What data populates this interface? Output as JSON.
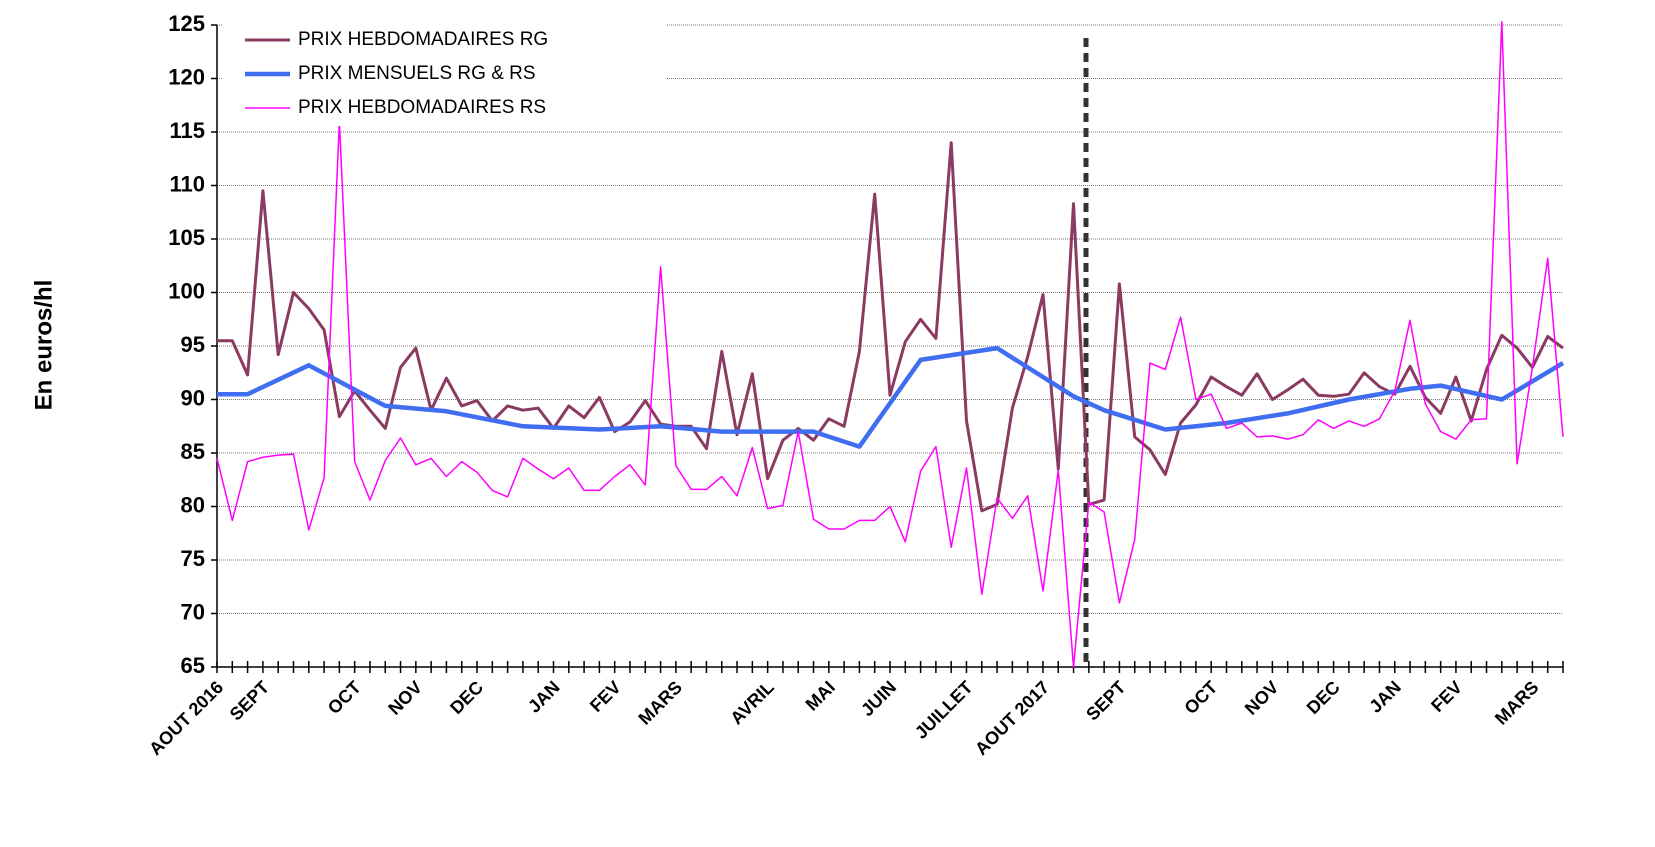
{
  "chart_data": {
    "type": "line",
    "axis_label_y": "En euros/hl",
    "categories": [
      "AOUT 2016",
      null,
      null,
      "SEPT",
      null,
      null,
      null,
      null,
      null,
      "OCT",
      null,
      null,
      null,
      "NOV",
      null,
      null,
      null,
      "DEC",
      null,
      null,
      null,
      null,
      "JAN",
      null,
      null,
      null,
      "FEV",
      null,
      null,
      null,
      "MARS",
      null,
      null,
      null,
      null,
      null,
      "AVRIL",
      null,
      null,
      null,
      "MAI",
      null,
      null,
      null,
      "JUIN",
      null,
      null,
      null,
      null,
      "JUILLET",
      null,
      null,
      null,
      null,
      "AOUT 2017",
      null,
      null,
      null,
      null,
      "SEPT",
      null,
      null,
      null,
      null,
      null,
      "OCT",
      null,
      null,
      null,
      "NOV",
      null,
      null,
      null,
      "DEC",
      null,
      null,
      null,
      "JAN",
      null,
      null,
      null,
      "FEV",
      null,
      null,
      null,
      null,
      "MARS",
      null,
      null
    ],
    "series": [
      {
        "name": "PRIX HEBDOMADAIRES RG",
        "color": "#8b3a62",
        "width": 3,
        "values": [
          95.5,
          95.5,
          92.3,
          109.5,
          94.2,
          100,
          98.5,
          96.5,
          88.4,
          90.8,
          89,
          87.3,
          93,
          94.8,
          89,
          92,
          89.4,
          89.9,
          88,
          89.4,
          89,
          89.2,
          87.3,
          89.4,
          88.3,
          90.2,
          87,
          87.9,
          89.9,
          87.7,
          87.5,
          87.5,
          85.4,
          94.5,
          86.7,
          92.4,
          82.6,
          86.2,
          87.3,
          86.2,
          88.2,
          87.5,
          94.5,
          109.2,
          90.4,
          95.4,
          97.5,
          95.7,
          114,
          88,
          79.6,
          80.2,
          89.2,
          94,
          99.8,
          83.5,
          108.3,
          80.2,
          80.6,
          100.8,
          86.5,
          85.3,
          83,
          87.8,
          89.5,
          92.1,
          91.2,
          90.4,
          92.4,
          90,
          90.9,
          91.9,
          90.4,
          90.3,
          90.5,
          92.5,
          91.2,
          90.5,
          93.1,
          90.2,
          88.7,
          92.1,
          88,
          92.8,
          96,
          94.8,
          93,
          95.9,
          94.8
        ]
      },
      {
        "name": "PRIX MENSUELS RG & RS",
        "color": "#3f6ff0",
        "width": 4.5,
        "values": [
          90.5,
          null,
          90.5,
          null,
          null,
          null,
          93.2,
          null,
          null,
          null,
          null,
          89.4,
          null,
          null,
          null,
          88.9,
          null,
          null,
          null,
          null,
          87.5,
          null,
          null,
          null,
          null,
          87.2,
          null,
          null,
          null,
          87.5,
          null,
          null,
          null,
          87,
          null,
          null,
          null,
          null,
          null,
          87,
          null,
          null,
          85.6,
          null,
          null,
          null,
          93.7,
          null,
          null,
          null,
          null,
          94.8,
          null,
          null,
          null,
          null,
          90.3,
          null,
          89,
          null,
          null,
          null,
          87.2,
          null,
          null,
          null,
          87.8,
          null,
          null,
          null,
          88.7,
          null,
          null,
          null,
          90,
          null,
          null,
          null,
          91,
          null,
          91.3,
          null,
          null,
          null,
          90,
          null,
          null,
          null,
          93.4
        ]
      },
      {
        "name": "PRIX HEBDOMADAIRES RS",
        "color": "#ff00ff",
        "width": 1.5,
        "values": [
          84.5,
          78.7,
          84.2,
          84.6,
          84.8,
          84.9,
          77.8,
          82.7,
          116,
          84.2,
          80.6,
          84.3,
          86.4,
          83.9,
          84.5,
          82.8,
          84.2,
          83.2,
          81.5,
          80.9,
          84.5,
          83.5,
          82.6,
          83.6,
          81.5,
          81.5,
          82.8,
          83.9,
          82,
          102.4,
          83.8,
          81.6,
          81.6,
          82.8,
          81,
          85.5,
          79.8,
          80.1,
          87,
          78.8,
          77.9,
          77.9,
          78.7,
          78.7,
          80,
          76.7,
          83.3,
          85.6,
          76.2,
          83.6,
          71.8,
          80.8,
          78.9,
          81,
          72.1,
          83.4,
          65,
          80.4,
          79.5,
          71,
          76.9,
          93.4,
          92.8,
          97.7,
          90,
          90.5,
          87.3,
          87.8,
          86.5,
          86.6,
          86.3,
          86.7,
          88.1,
          87.3,
          88,
          87.5,
          88.2,
          90.8,
          97.4,
          89.6,
          87,
          86.3,
          88.1,
          88.2,
          125.3,
          84,
          93,
          103.2,
          86.5
        ]
      }
    ],
    "ylim": [
      65,
      125
    ],
    "yticks": [
      65,
      70,
      75,
      80,
      85,
      90,
      95,
      100,
      105,
      110,
      115,
      120,
      125
    ],
    "grid": true,
    "legend": "top-left"
  }
}
